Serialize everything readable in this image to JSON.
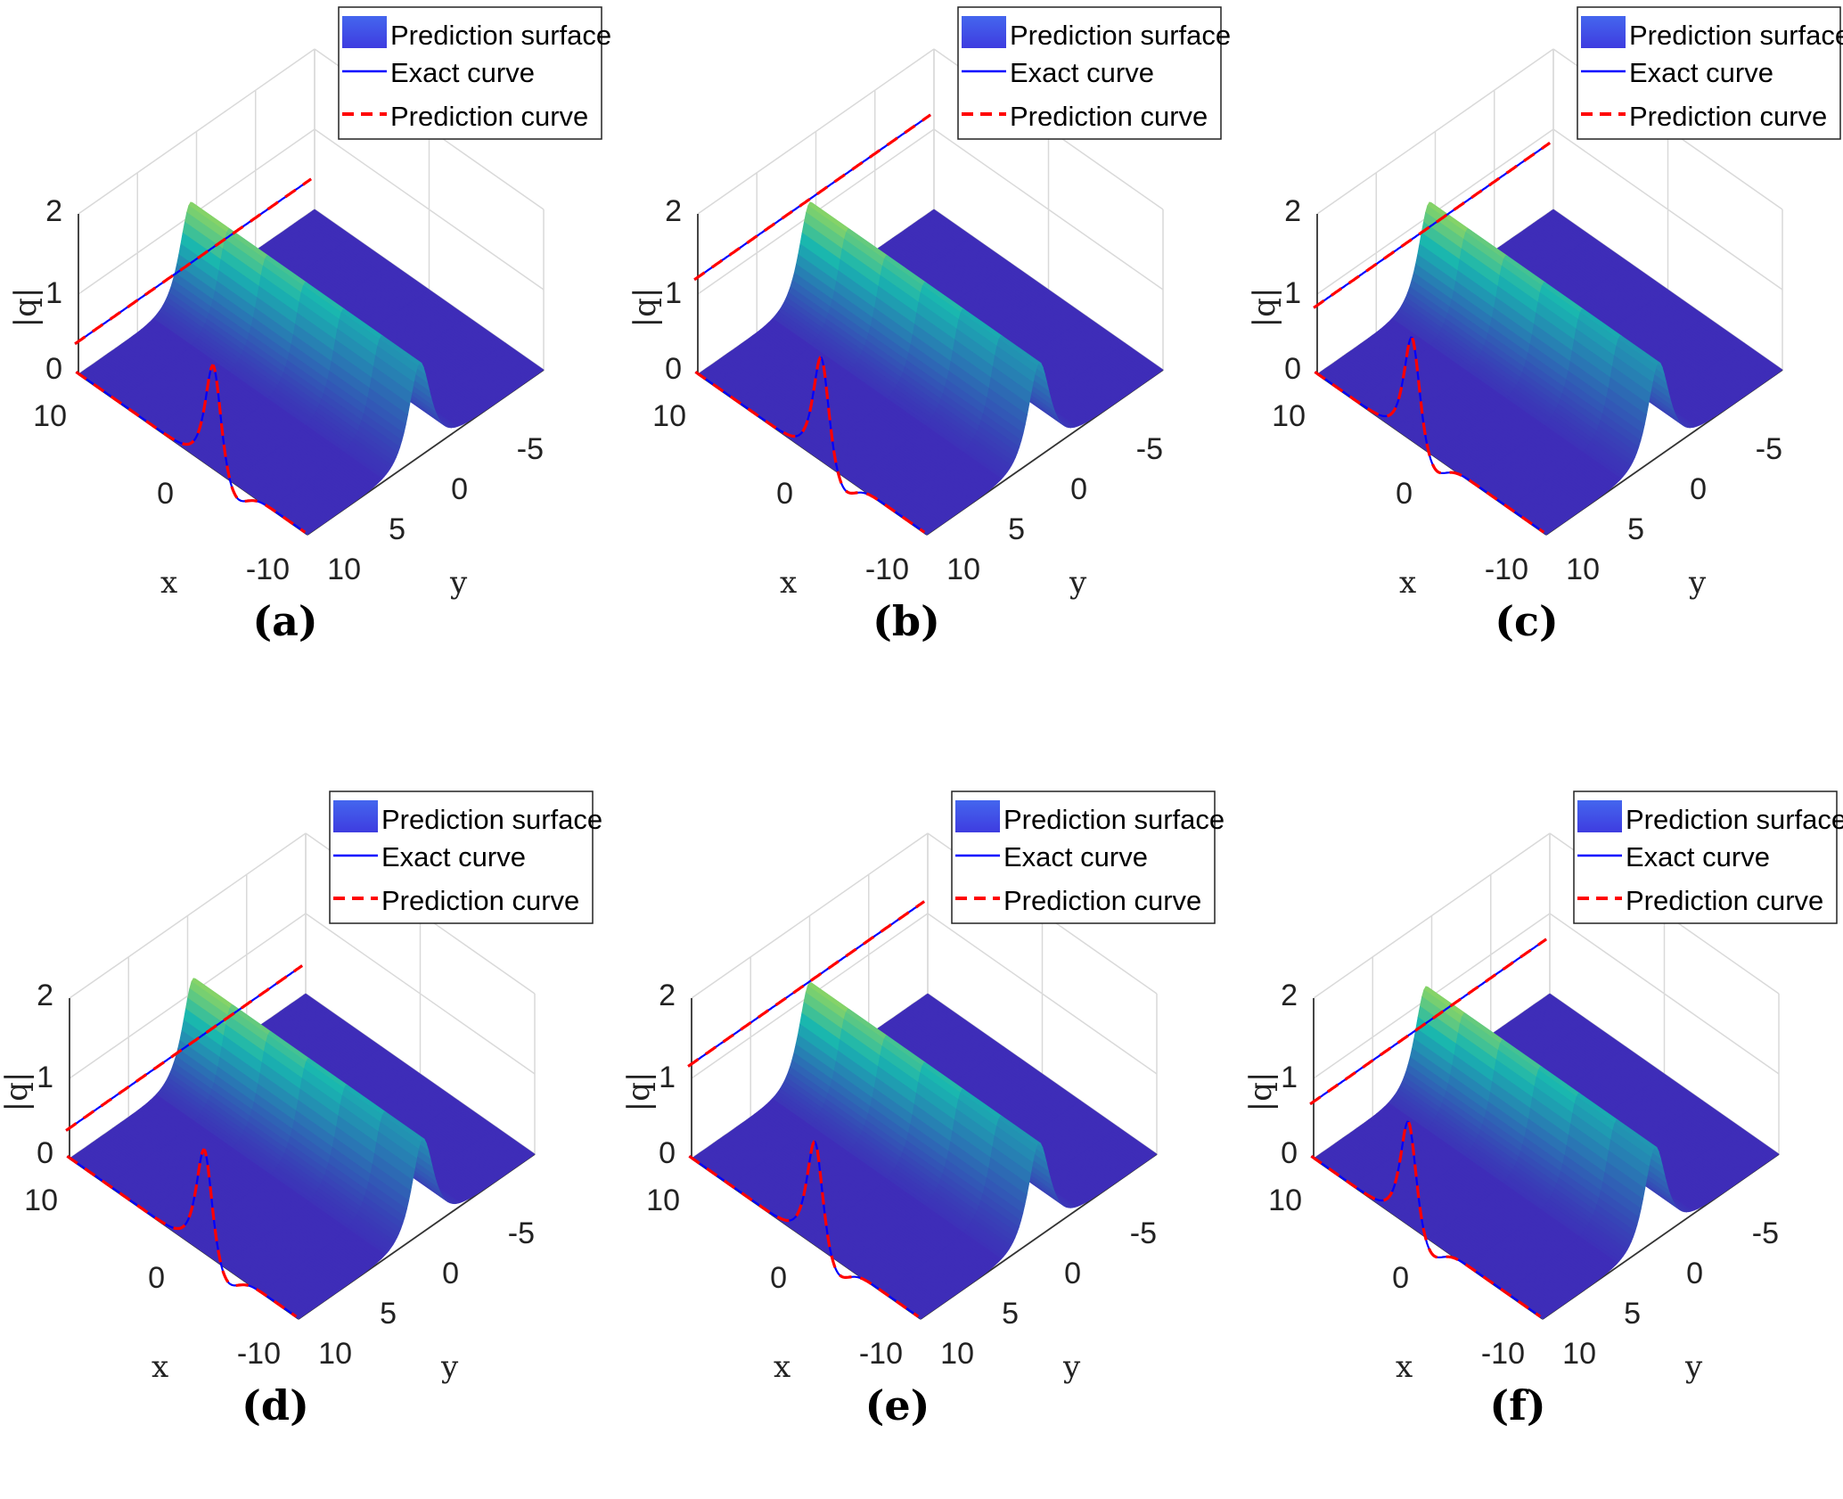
{
  "legend": {
    "surface_label": "Prediction surface",
    "exact_label": "Exact curve",
    "pred_label": "Prediction curve"
  },
  "colors": {
    "legend_patch_top": "#4466ee",
    "legend_patch_bottom": "#3e3ce0",
    "exact": "#0000ff",
    "prediction": "#ff0000",
    "surface_low": "#3e2db8",
    "surface_mid": "#18b6b0",
    "surface_high": "#fbf21a"
  },
  "chart_data": [
    {
      "panel": "(a)",
      "type": "surface",
      "x_ticks": [
        "10",
        "0",
        "-10"
      ],
      "y_ticks": [
        "-5",
        "0",
        "5",
        "10"
      ],
      "z_ticks": [
        "0",
        "1",
        "2"
      ],
      "xlabel": "x",
      "ylabel": "y",
      "zlabel": "|q|",
      "xlim": [
        -10,
        10
      ],
      "ylim": [
        -10,
        10
      ],
      "zlim": [
        0,
        2
      ],
      "soliton": {
        "amplitude": 1.5,
        "y_center": 0.5,
        "x_center": 0.5,
        "x_profile_center": -2.0,
        "y_profile_center": 0.5,
        "dip": 0.22
      },
      "legend_position": "top-right"
    },
    {
      "panel": "(b)",
      "type": "surface",
      "x_ticks": [
        "10",
        "0",
        "-10"
      ],
      "y_ticks": [
        "-5",
        "0",
        "5",
        "10"
      ],
      "z_ticks": [
        "0",
        "1",
        "2"
      ],
      "xlabel": "x",
      "ylabel": "y",
      "zlabel": "|q|",
      "xlim": [
        -10,
        10
      ],
      "ylim": [
        -10,
        10
      ],
      "zlim": [
        0,
        2
      ],
      "soliton": {
        "amplitude": 1.5,
        "y_center": 0.5,
        "x_center": 0.5,
        "x_profile_center": -1.0,
        "y_profile_center": 0.5,
        "dip": 0.22
      },
      "legend_position": "top-right"
    },
    {
      "panel": "(c)",
      "type": "surface",
      "x_ticks": [
        "10",
        "0",
        "-10"
      ],
      "y_ticks": [
        "-5",
        "0",
        "5",
        "10"
      ],
      "z_ticks": [
        "0",
        "1",
        "2"
      ],
      "xlabel": "x",
      "ylabel": "y",
      "zlabel": "|q|",
      "xlim": [
        -10,
        10
      ],
      "ylim": [
        -10,
        10
      ],
      "zlim": [
        0,
        2
      ],
      "soliton": {
        "amplitude": 1.5,
        "y_center": 0.5,
        "x_center": 0.5,
        "x_profile_center": 1.5,
        "y_profile_center": 0.5,
        "dip": 0.22
      },
      "legend_position": "top-right"
    },
    {
      "panel": "(d)",
      "type": "surface",
      "x_ticks": [
        "10",
        "0",
        "-10"
      ],
      "y_ticks": [
        "-5",
        "0",
        "5",
        "10"
      ],
      "z_ticks": [
        "0",
        "1",
        "2"
      ],
      "xlabel": "x",
      "ylabel": "y",
      "zlabel": "|q|",
      "xlim": [
        -10,
        10
      ],
      "ylim": [
        -10,
        10
      ],
      "zlim": [
        0,
        2
      ],
      "soliton": {
        "amplitude": 1.5,
        "y_center": -0.5,
        "x_center": 0.5,
        "x_profile_center": -2.0,
        "y_profile_center": -0.5,
        "dip": 0.22
      },
      "legend_position": "top-right"
    },
    {
      "panel": "(e)",
      "type": "surface",
      "x_ticks": [
        "10",
        "0",
        "-10"
      ],
      "y_ticks": [
        "-5",
        "0",
        "5",
        "10"
      ],
      "z_ticks": [
        "0",
        "1",
        "2"
      ],
      "xlabel": "x",
      "ylabel": "y",
      "zlabel": "|q|",
      "xlim": [
        -10,
        10
      ],
      "ylim": [
        -10,
        10
      ],
      "zlim": [
        0,
        2
      ],
      "soliton": {
        "amplitude": 1.5,
        "y_center": 0.0,
        "x_center": 0.5,
        "x_profile_center": -1.0,
        "y_profile_center": 0.0,
        "dip": 0.22
      },
      "legend_position": "top-right"
    },
    {
      "panel": "(f)",
      "type": "surface",
      "x_ticks": [
        "10",
        "0",
        "-10"
      ],
      "y_ticks": [
        "-5",
        "0",
        "5",
        "10"
      ],
      "z_ticks": [
        "0",
        "1",
        "2"
      ],
      "xlabel": "x",
      "ylabel": "y",
      "zlabel": "|q|",
      "xlim": [
        -10,
        10
      ],
      "ylim": [
        -10,
        10
      ],
      "zlim": [
        0,
        2
      ],
      "soliton": {
        "amplitude": 1.5,
        "y_center": 0.5,
        "x_center": 0.5,
        "x_profile_center": 1.5,
        "y_profile_center": 0.5,
        "dip": 0.22
      },
      "legend_position": "top-right"
    }
  ]
}
